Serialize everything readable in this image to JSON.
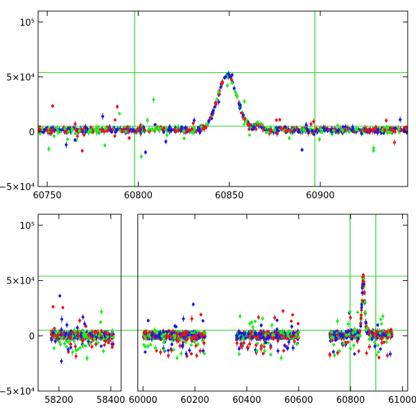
{
  "chart_data": [
    {
      "type": "scatter",
      "xlim": [
        60745,
        60948
      ],
      "ylim": [
        -50000,
        110000
      ],
      "x_ticks": [
        {
          "value": 60750,
          "label": "60750"
        },
        {
          "value": 60800,
          "label": "60800"
        },
        {
          "value": 60850,
          "label": "60850"
        },
        {
          "value": 60900,
          "label": "60900"
        }
      ],
      "y_ticks": [
        {
          "value": -50000,
          "label": "−5×10⁴"
        },
        {
          "value": 0,
          "label": "0"
        },
        {
          "value": 50000,
          "label": "5×10⁴"
        },
        {
          "value": 100000,
          "label": "10⁵"
        }
      ],
      "x_segments": [],
      "hlines": [
        54000,
        5000
      ],
      "vlines": [
        60798,
        60897
      ],
      "series_colors": [
        "#e8141e",
        "#1a1ae6",
        "#22ee22"
      ],
      "grid": false,
      "legend": "none"
    },
    {
      "type": "scatter",
      "xlim": [
        58120,
        61020
      ],
      "ylim": [
        -50000,
        110000
      ],
      "x_ticks": [
        {
          "value": 58200,
          "label": "58200"
        },
        {
          "value": 58400,
          "label": "58400"
        },
        {
          "value": 60000,
          "label": "60000"
        },
        {
          "value": 60200,
          "label": "60200"
        },
        {
          "value": 60400,
          "label": "60400"
        },
        {
          "value": 60600,
          "label": "60600"
        },
        {
          "value": 60800,
          "label": "60800"
        },
        {
          "value": 61000,
          "label": "61000"
        }
      ],
      "y_ticks": [
        {
          "value": -50000,
          "label": "−5×10⁴"
        },
        {
          "value": 0,
          "label": "0"
        },
        {
          "value": 50000,
          "label": "5×10⁴"
        },
        {
          "value": 100000,
          "label": "10⁵"
        }
      ],
      "x_segments": [
        [
          58120,
          58440
        ],
        [
          59980,
          61020
        ]
      ],
      "hlines": [
        54000,
        5000
      ],
      "vlines": [
        60798,
        60897
      ],
      "series_colors": [
        "#e8141e",
        "#1a1ae6",
        "#22ee22"
      ],
      "grid": false,
      "legend": "none"
    }
  ]
}
